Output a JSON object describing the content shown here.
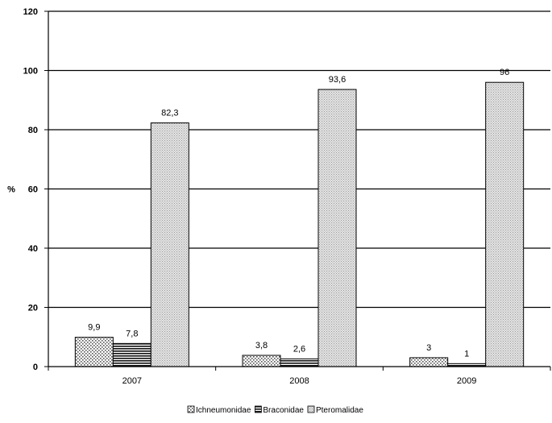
{
  "chart_data": {
    "type": "bar",
    "title": "",
    "xlabel": "",
    "ylabel": "%",
    "ylim": [
      0,
      120
    ],
    "yticks": [
      0,
      20,
      40,
      60,
      80,
      100,
      120
    ],
    "grid": "horizontal",
    "legend_position": "bottom",
    "categories": [
      "2007",
      "2008",
      "2009"
    ],
    "series": [
      {
        "name": "Ichneumonidae",
        "values": [
          9.9,
          3.8,
          3
        ],
        "labels": [
          "9,9",
          "3,8",
          "3"
        ],
        "pattern": "dotted"
      },
      {
        "name": "Braconidae",
        "values": [
          7.8,
          2.6,
          1
        ],
        "labels": [
          "7,8",
          "2,6",
          "1"
        ],
        "pattern": "horizontal-lines"
      },
      {
        "name": "Pteromalidae",
        "values": [
          82.3,
          93.6,
          96
        ],
        "labels": [
          "82,3",
          "93,6",
          "96"
        ],
        "pattern": "fine-dots"
      }
    ]
  }
}
